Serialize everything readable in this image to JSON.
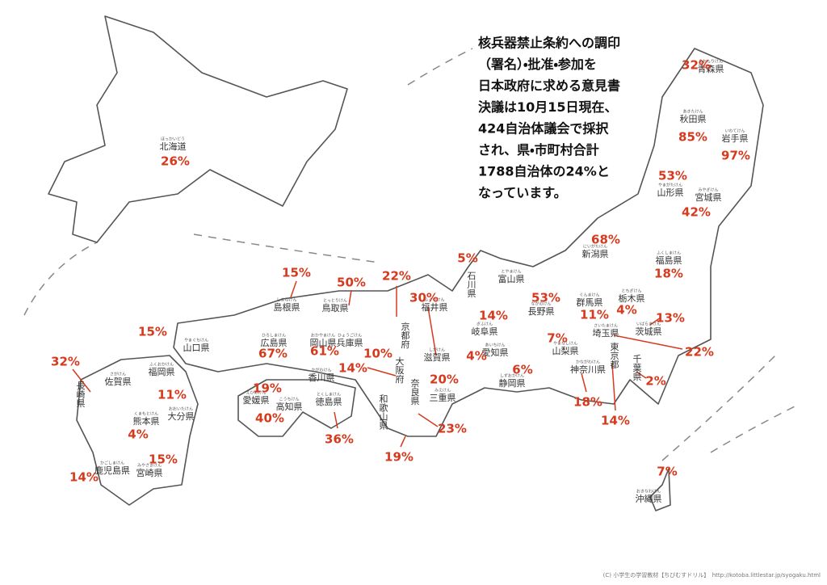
{
  "message": [
    "核兵器禁止条約への調印",
    "（署名）・批准・参加を",
    "日本政府に求める意見書",
    "決議は10月15日現在、",
    "424自治体議会で採択",
    "され、県・市町村合計",
    "1788自治体の24%と",
    "なっています。"
  ],
  "prefectures": [
    {
      "name": "北海道",
      "reading": "ほっかいどう"
    },
    {
      "name": "青森県",
      "reading": "あおもりけん"
    },
    {
      "name": "秋田県",
      "reading": "あきたけん"
    },
    {
      "name": "岩手県",
      "reading": "いわてけん"
    },
    {
      "name": "山形県",
      "reading": "やまがたけん"
    },
    {
      "name": "宮城県",
      "reading": "みやぎけん"
    },
    {
      "name": "新潟県",
      "reading": "にいがたけん"
    },
    {
      "name": "福島県",
      "reading": "ふくしまけん"
    },
    {
      "name": "富山県",
      "reading": "とやまけん"
    },
    {
      "name": "石川県"
    },
    {
      "name": "福井県",
      "reading": "ふくいけん"
    },
    {
      "name": "岐阜県",
      "reading": "ぎふけん"
    },
    {
      "name": "長野県",
      "reading": "ながのけん"
    },
    {
      "name": "群馬県",
      "reading": "ぐんまけん"
    },
    {
      "name": "栃木県",
      "reading": "とちぎけん"
    },
    {
      "name": "茨城県",
      "reading": "いばらきけん"
    },
    {
      "name": "埼玉県",
      "reading": "さいたまけん"
    },
    {
      "name": "千葉県"
    },
    {
      "name": "東京都"
    },
    {
      "name": "神奈川県",
      "reading": "かながわけん"
    },
    {
      "name": "山梨県",
      "reading": "やまなしけん"
    },
    {
      "name": "静岡県",
      "reading": "しずおかけん"
    },
    {
      "name": "愛知県",
      "reading": "あいちけん"
    },
    {
      "name": "三重県",
      "reading": "みえけん"
    },
    {
      "name": "滋賀県",
      "reading": "しがけん"
    },
    {
      "name": "京都府"
    },
    {
      "name": "大阪府"
    },
    {
      "name": "奈良県"
    },
    {
      "name": "和歌山県"
    },
    {
      "name": "兵庫県",
      "reading": "ひょうごけん"
    },
    {
      "name": "鳥取県",
      "reading": "とっとりけん"
    },
    {
      "name": "島根県",
      "reading": "しまねけん"
    },
    {
      "name": "岡山県",
      "reading": "おかやまけん"
    },
    {
      "name": "広島県",
      "reading": "ひろしまけん"
    },
    {
      "name": "山口県",
      "reading": "やまぐちけん"
    },
    {
      "name": "香川県",
      "reading": "かがわけん"
    },
    {
      "name": "徳島県",
      "reading": "とくしまけん"
    },
    {
      "name": "愛媛県",
      "reading": "えひめけん"
    },
    {
      "name": "高知県",
      "reading": "こうちけん"
    },
    {
      "name": "福岡県",
      "reading": "ふくおかけん"
    },
    {
      "name": "佐賀県",
      "reading": "さがけん"
    },
    {
      "name": "長崎県"
    },
    {
      "name": "大分県",
      "reading": "おおいたけん"
    },
    {
      "name": "熊本県",
      "reading": "くまもとけん"
    },
    {
      "name": "宮崎県",
      "reading": "みやざきけん"
    },
    {
      "name": "鹿児島県",
      "reading": "かごしまけん"
    },
    {
      "name": "沖縄県",
      "reading": "おきなわけん"
    }
  ],
  "percentages": [
    "26%",
    "32%",
    "85%",
    "97%",
    "53%",
    "42%",
    "68%",
    "18%",
    "5%",
    "22%",
    "30%",
    "14%",
    "53%",
    "11%",
    "4%",
    "13%",
    "22%",
    "2%",
    "14%",
    "18%",
    "7%",
    "6%",
    "4%",
    "20%",
    "23%",
    "19%",
    "10%",
    "14%",
    "50%",
    "15%",
    "61%",
    "67%",
    "36%",
    "19%",
    "40%",
    "15%",
    "32%",
    "11%",
    "4%",
    "15%",
    "14%",
    "7%"
  ],
  "footer": "(C) 小学生の学習教材【ちびむすドリル】　http://kotoba.littlestar.jp/syogaku.html"
}
